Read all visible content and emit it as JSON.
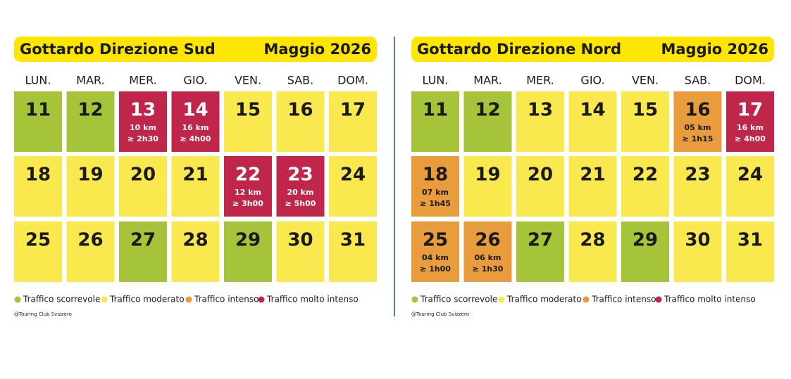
{
  "panels": [
    {
      "title": "Gottardo Direzione Sud",
      "month": "Maggio 2026",
      "weekdays": [
        "LUN.",
        "MAR.",
        "MER.",
        "GIO.",
        "VEN.",
        "SAB.",
        "DOM."
      ],
      "weeks": [
        [
          {
            "day": "11",
            "traffic": 0
          },
          {
            "day": "12",
            "traffic": 0
          },
          {
            "day": "13",
            "traffic": 3,
            "km": "10 km",
            "time": "≥ 2h30"
          },
          {
            "day": "14",
            "traffic": 3,
            "km": "16 km",
            "time": "≥ 4h00"
          },
          {
            "day": "15",
            "traffic": 1
          },
          {
            "day": "16",
            "traffic": 1
          },
          {
            "day": "17",
            "traffic": 1
          }
        ],
        [
          {
            "day": "18",
            "traffic": 1
          },
          {
            "day": "19",
            "traffic": 1
          },
          {
            "day": "20",
            "traffic": 1
          },
          {
            "day": "21",
            "traffic": 1
          },
          {
            "day": "22",
            "traffic": 3,
            "km": "12 km",
            "time": "≥ 3h00"
          },
          {
            "day": "23",
            "traffic": 3,
            "km": "20 km",
            "time": "≥ 5h00"
          },
          {
            "day": "24",
            "traffic": 1
          }
        ],
        [
          {
            "day": "25",
            "traffic": 1
          },
          {
            "day": "26",
            "traffic": 1
          },
          {
            "day": "27",
            "traffic": 0
          },
          {
            "day": "28",
            "traffic": 1
          },
          {
            "day": "29",
            "traffic": 0
          },
          {
            "day": "30",
            "traffic": 1
          },
          {
            "day": "31",
            "traffic": 1
          }
        ]
      ],
      "legend": [
        {
          "name": "Traffico scorrevole",
          "color": "#a6c43a"
        },
        {
          "name": "Traffico moderato",
          "color": "#f9e84e"
        },
        {
          "name": "Traffico intenso",
          "color": "#e89c3c"
        },
        {
          "name": "Traffico molto intenso",
          "color": "#c0254a"
        }
      ],
      "credit": "@Touring Club Svizzero"
    },
    {
      "title": "Gottardo Direzione Nord",
      "month": "Maggio 2026",
      "weekdays": [
        "LUN.",
        "MAR.",
        "MER.",
        "GIO.",
        "VEN.",
        "SAB.",
        "DOM."
      ],
      "weeks": [
        [
          {
            "day": "11",
            "traffic": 0
          },
          {
            "day": "12",
            "traffic": 0
          },
          {
            "day": "13",
            "traffic": 1
          },
          {
            "day": "14",
            "traffic": 1
          },
          {
            "day": "15",
            "traffic": 1
          },
          {
            "day": "16",
            "traffic": 2,
            "km": "05 km",
            "time": "≥ 1h15"
          },
          {
            "day": "17",
            "traffic": 3,
            "km": "16 km",
            "time": "≥ 4h00"
          }
        ],
        [
          {
            "day": "18",
            "traffic": 2,
            "km": "07 km",
            "time": "≥ 1h45"
          },
          {
            "day": "19",
            "traffic": 1
          },
          {
            "day": "20",
            "traffic": 1
          },
          {
            "day": "21",
            "traffic": 1
          },
          {
            "day": "22",
            "traffic": 1
          },
          {
            "day": "23",
            "traffic": 1
          },
          {
            "day": "24",
            "traffic": 1
          }
        ],
        [
          {
            "day": "25",
            "traffic": 2,
            "km": "04 km",
            "time": "≥ 1h00"
          },
          {
            "day": "26",
            "traffic": 2,
            "km": "06 km",
            "time": "≥ 1h30"
          },
          {
            "day": "27",
            "traffic": 0
          },
          {
            "day": "28",
            "traffic": 1
          },
          {
            "day": "29",
            "traffic": 0
          },
          {
            "day": "30",
            "traffic": 1
          },
          {
            "day": "31",
            "traffic": 1
          }
        ]
      ],
      "legend": [
        {
          "name": "Traffico scorrevole",
          "color": "#a6c43a"
        },
        {
          "name": "Traffico moderato",
          "color": "#f9e84e"
        },
        {
          "name": "Traffico intenso",
          "color": "#e89c3c"
        },
        {
          "name": "Traffico molto intenso",
          "color": "#c0254a"
        }
      ],
      "credit": "@Touring Club Svizzero"
    }
  ]
}
